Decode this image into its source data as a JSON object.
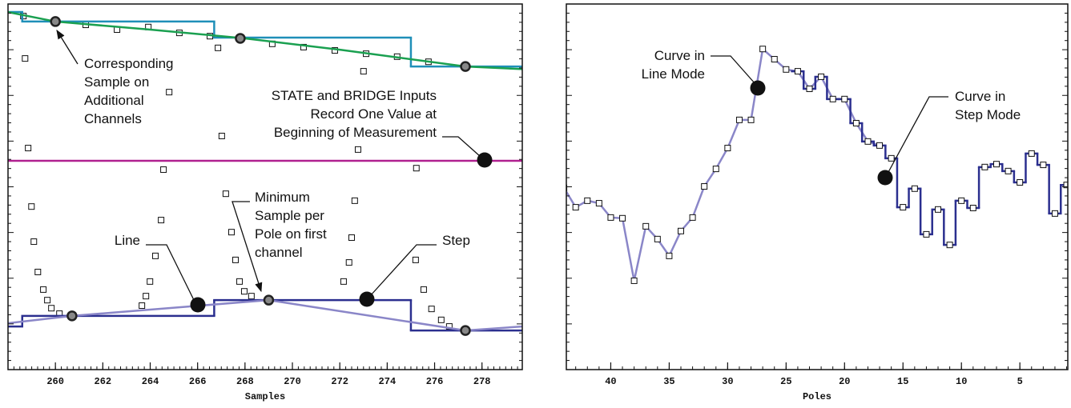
{
  "chart_data": [
    {
      "type": "line",
      "xlabel": "Samples",
      "xlim": [
        258,
        279.7
      ],
      "ylim": [
        0,
        100
      ],
      "xticks": [
        260,
        262,
        264,
        266,
        268,
        270,
        272,
        274,
        276,
        278
      ],
      "series": [
        {
          "style": "squares",
          "color": "#111111",
          "x": [
            258.65,
            258.72,
            261.28,
            262.6,
            263.92,
            265.23,
            266.52,
            266.86,
            269.15,
            270.47,
            271.79,
            273.11,
            274.42,
            275.74,
            264.8,
            273.0,
            258.85,
            267.02,
            272.77,
            264.56,
            275.23,
            258.99,
            259.09,
            259.26,
            259.49,
            259.66,
            259.83,
            260.17,
            264.46,
            264.22,
            263.99,
            263.82,
            263.65,
            267.19,
            267.43,
            267.6,
            267.77,
            267.97,
            268.27,
            272.16,
            272.39,
            272.5,
            272.63,
            275.2,
            275.54,
            275.87,
            276.28,
            276.62
          ],
          "values": [
            96.7,
            85.1,
            94.3,
            93.0,
            93.7,
            92.1,
            91.2,
            88.0,
            89.1,
            88.2,
            87.3,
            86.4,
            85.6,
            84.2,
            75.9,
            81.6,
            60.6,
            63.9,
            60.2,
            54.7,
            55.1,
            44.6,
            35.0,
            26.7,
            21.9,
            19.0,
            16.8,
            15.3,
            40.9,
            31.1,
            24.1,
            20.1,
            17.5,
            48.1,
            37.6,
            30.0,
            24.1,
            21.4,
            20.1,
            24.1,
            29.3,
            36.1,
            46.2,
            30.0,
            21.9,
            16.6,
            13.6,
            11.8
          ]
        },
        {
          "style": "step",
          "color": "#1f8fb8",
          "x": [
            258,
            258.6,
            266.7,
            275.0
          ],
          "values": [
            97.8,
            95.2,
            90.8,
            82.9
          ]
        },
        {
          "style": "line",
          "color": "#1aa050",
          "x": [
            258,
            260,
            264,
            268,
            272,
            277.3,
            279.7
          ],
          "values": [
            97.8,
            95.2,
            93.0,
            90.6,
            87.5,
            82.9,
            82.2
          ]
        },
        {
          "style": "line",
          "color": "#b0208f",
          "x": [
            258,
            279.7
          ],
          "values": [
            57.1,
            57.1
          ]
        },
        {
          "style": "step",
          "color": "#2b2f8f",
          "x": [
            258,
            258.6,
            266.7,
            275.0
          ],
          "values": [
            11.8,
            14.7,
            19.0,
            10.7
          ]
        },
        {
          "style": "line",
          "color": "#8a86c8",
          "x": [
            258,
            260.7,
            269.0,
            277.3,
            279.7
          ],
          "values": [
            12.7,
            14.7,
            19.0,
            10.7,
            11.8
          ]
        },
        {
          "style": "markers",
          "color": "#888888",
          "x": [
            260,
            267.8,
            277.3,
            260.7,
            269.0,
            277.3
          ],
          "values": [
            95.2,
            90.6,
            82.9,
            14.7,
            19.0,
            10.7
          ]
        }
      ],
      "annotations": [
        {
          "lines": [
            "Corresponding",
            "Sample on",
            "Additional",
            "Channels"
          ]
        },
        {
          "lines": [
            "STATE and BRIDGE Inputs",
            "Record One Value at",
            "Beginning of Measurement"
          ]
        },
        {
          "lines": [
            "Line"
          ]
        },
        {
          "lines": [
            "Minimum",
            "Sample per",
            "Pole on first",
            "channel"
          ]
        },
        {
          "lines": [
            "Step"
          ]
        }
      ]
    },
    {
      "type": "line",
      "xlabel": "Poles",
      "xlim": [
        43.8,
        0.9
      ],
      "ylim": [
        0,
        100
      ],
      "xticks": [
        40,
        35,
        30,
        25,
        20,
        15,
        10,
        5
      ],
      "series": [
        {
          "style": "line",
          "color": "#8a86c8",
          "x": [
            44,
            43,
            42,
            41,
            40,
            39,
            38,
            37,
            36,
            35,
            34,
            33,
            32,
            31,
            30,
            29,
            28,
            27,
            26,
            25,
            24,
            23,
            22,
            21,
            20,
            19,
            18,
            17
          ],
          "values": [
            49.7,
            44.4,
            46.2,
            45.5,
            41.6,
            41.4,
            24.3,
            39.2,
            35.7,
            31.1,
            37.9,
            41.6,
            50.1,
            54.9,
            60.6,
            68.3,
            68.3,
            87.7,
            84.9,
            82.1,
            81.6,
            76.8,
            80.1,
            74.0,
            74.0,
            67.4,
            62.4,
            61.3
          ]
        },
        {
          "style": "midstep",
          "color": "#2b2f8f",
          "x": [
            24,
            23,
            22,
            21,
            20,
            19,
            18,
            17,
            16,
            15,
            14,
            13,
            12,
            11,
            10,
            9,
            8,
            7,
            6,
            5,
            4,
            3,
            2,
            1
          ],
          "values": [
            81.6,
            76.8,
            80.1,
            74.0,
            74.0,
            67.4,
            62.4,
            61.3,
            57.8,
            44.4,
            49.5,
            37.0,
            43.8,
            34.1,
            46.2,
            44.2,
            55.4,
            56.2,
            54.3,
            51.2,
            59.1,
            56.0,
            42.7,
            50.5
          ]
        },
        {
          "style": "squares",
          "color": "#111111",
          "x": [
            44,
            43,
            42,
            41,
            40,
            39,
            38,
            37,
            36,
            35,
            34,
            33,
            32,
            31,
            30,
            29,
            28,
            27,
            26,
            25,
            24,
            23,
            22,
            21,
            20,
            19,
            18,
            17,
            16,
            15,
            14,
            13,
            12,
            11,
            10,
            9,
            8,
            7,
            6,
            5,
            4,
            3,
            2,
            1
          ],
          "values": [
            49.7,
            44.4,
            46.2,
            45.5,
            41.6,
            41.4,
            24.3,
            39.2,
            35.7,
            31.1,
            37.9,
            41.6,
            50.1,
            54.9,
            60.6,
            68.3,
            68.3,
            87.7,
            84.9,
            82.1,
            81.6,
            76.8,
            80.1,
            74.0,
            74.0,
            67.4,
            62.4,
            61.3,
            57.8,
            44.4,
            49.5,
            37.0,
            43.8,
            34.1,
            46.2,
            44.2,
            55.4,
            56.2,
            54.3,
            51.2,
            59.1,
            56.0,
            42.7,
            50.5
          ]
        }
      ],
      "annotations": [
        {
          "lines": [
            "Curve in",
            "Line Mode"
          ]
        },
        {
          "lines": [
            "Curve in",
            "Step Mode"
          ]
        }
      ]
    }
  ]
}
